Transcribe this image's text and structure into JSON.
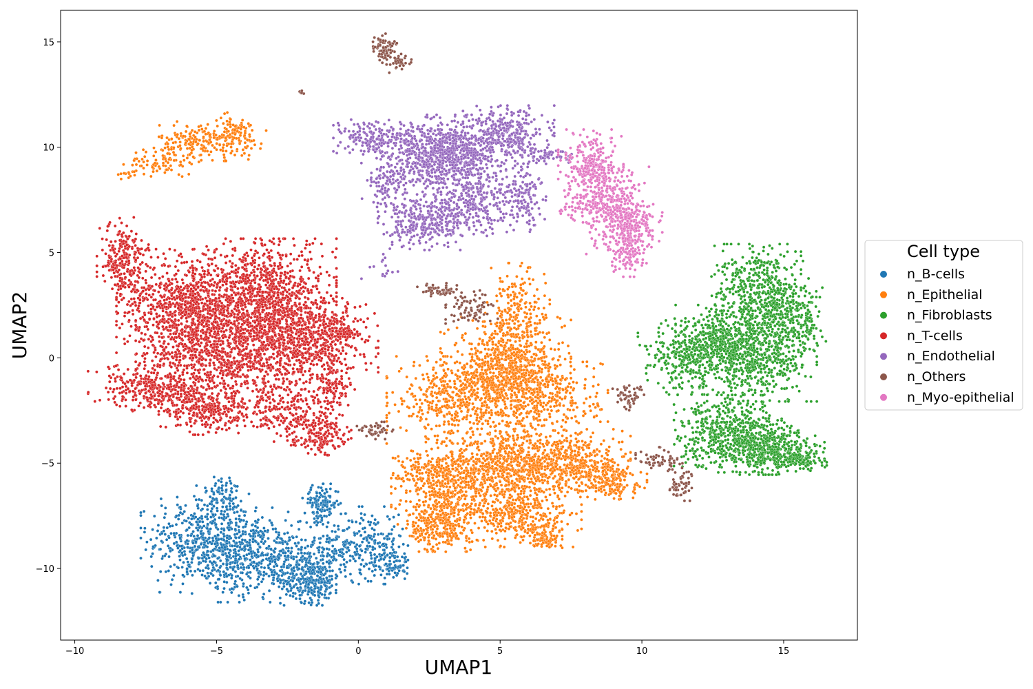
{
  "chart_data": {
    "type": "scatter",
    "title": "",
    "xlabel": "UMAP1",
    "ylabel": "UMAP2",
    "xlim": [
      -10.5,
      17.6
    ],
    "ylim": [
      -13.4,
      16.5
    ],
    "xticks": [
      -10,
      -5,
      0,
      5,
      10,
      15
    ],
    "yticks": [
      -10,
      -5,
      0,
      5,
      10,
      15
    ],
    "xtick_labels": [
      "−10",
      "−5",
      "0",
      "5",
      "10",
      "15"
    ],
    "ytick_labels": [
      "−10",
      "−5",
      "0",
      "5",
      "10",
      "15"
    ],
    "grid": false,
    "legend": {
      "title": "Cell type",
      "placement": "center-right-outside"
    },
    "series": [
      {
        "name": "n_B-cells",
        "color": "#1f77b4",
        "clusters": [
          {
            "cx": -5.6,
            "cy": -8.6,
            "sx": 0.9,
            "sy": 1.1,
            "n": 420
          },
          {
            "cx": -4.2,
            "cy": -9.3,
            "sx": 0.8,
            "sy": 1.0,
            "n": 320
          },
          {
            "cx": -2.8,
            "cy": -9.6,
            "sx": 0.8,
            "sy": 0.8,
            "n": 280
          },
          {
            "cx": -1.6,
            "cy": -10.6,
            "sx": 0.5,
            "sy": 0.5,
            "n": 260
          },
          {
            "cx": -1.3,
            "cy": -6.9,
            "sx": 0.3,
            "sy": 0.4,
            "n": 130
          },
          {
            "cx": -0.8,
            "cy": -9.0,
            "sx": 0.6,
            "sy": 0.7,
            "n": 160
          },
          {
            "cx": 0.6,
            "cy": -8.9,
            "sx": 0.5,
            "sy": 0.8,
            "n": 160
          },
          {
            "cx": 1.2,
            "cy": -9.8,
            "sx": 0.3,
            "sy": 0.3,
            "n": 70
          },
          {
            "cx": -4.8,
            "cy": -6.5,
            "sx": 0.3,
            "sy": 0.5,
            "n": 70
          }
        ]
      },
      {
        "name": "n_Epithelial",
        "color": "#ff7f0e",
        "clusters": [
          {
            "cx": -5.6,
            "cy": 10.3,
            "sx": 0.7,
            "sy": 0.4,
            "n": 180
          },
          {
            "cx": -4.4,
            "cy": 10.5,
            "sx": 0.5,
            "sy": 0.5,
            "n": 110
          },
          {
            "cx": -6.9,
            "cy": 9.3,
            "sx": 0.6,
            "sy": 0.3,
            "n": 70
          },
          {
            "cx": -8.0,
            "cy": 8.7,
            "sx": 0.3,
            "sy": 0.1,
            "n": 15
          },
          {
            "cx": 5.2,
            "cy": -0.6,
            "sx": 1.0,
            "sy": 1.1,
            "n": 800
          },
          {
            "cx": 3.3,
            "cy": -2.0,
            "sx": 1.0,
            "sy": 0.9,
            "n": 420
          },
          {
            "cx": 6.5,
            "cy": -1.9,
            "sx": 1.0,
            "sy": 1.0,
            "n": 360
          },
          {
            "cx": 5.6,
            "cy": 2.2,
            "sx": 0.5,
            "sy": 1.0,
            "n": 180
          },
          {
            "cx": 5.0,
            "cy": -5.3,
            "sx": 1.1,
            "sy": 0.9,
            "n": 700
          },
          {
            "cx": 7.3,
            "cy": -5.0,
            "sx": 1.0,
            "sy": 0.7,
            "n": 500
          },
          {
            "cx": 8.8,
            "cy": -5.8,
            "sx": 0.6,
            "sy": 0.4,
            "n": 170
          },
          {
            "cx": 3.0,
            "cy": -6.9,
            "sx": 0.8,
            "sy": 1.0,
            "n": 420
          },
          {
            "cx": 2.8,
            "cy": -8.1,
            "sx": 0.5,
            "sy": 0.5,
            "n": 160
          },
          {
            "cx": 5.8,
            "cy": -7.6,
            "sx": 0.9,
            "sy": 0.6,
            "n": 320
          },
          {
            "cx": 6.5,
            "cy": -8.6,
            "sx": 0.3,
            "sy": 0.2,
            "n": 70
          },
          {
            "cx": 2.6,
            "cy": -5.2,
            "sx": 0.6,
            "sy": 0.4,
            "n": 150
          }
        ]
      },
      {
        "name": "n_Fibroblasts",
        "color": "#2ca02c",
        "clusters": [
          {
            "cx": 14.0,
            "cy": 3.1,
            "sx": 0.7,
            "sy": 1.0,
            "n": 420
          },
          {
            "cx": 15.0,
            "cy": 2.3,
            "sx": 0.5,
            "sy": 1.0,
            "n": 240
          },
          {
            "cx": 14.1,
            "cy": 0.0,
            "sx": 0.9,
            "sy": 0.9,
            "n": 560
          },
          {
            "cx": 11.7,
            "cy": 0.1,
            "sx": 0.8,
            "sy": 0.8,
            "n": 360
          },
          {
            "cx": 12.8,
            "cy": 0.9,
            "sx": 0.7,
            "sy": 0.7,
            "n": 260
          },
          {
            "cx": 13.2,
            "cy": -3.6,
            "sx": 0.9,
            "sy": 0.8,
            "n": 600
          },
          {
            "cx": 14.6,
            "cy": -4.4,
            "sx": 0.8,
            "sy": 0.5,
            "n": 380
          },
          {
            "cx": 15.6,
            "cy": -4.9,
            "sx": 0.4,
            "sy": 0.2,
            "n": 100
          },
          {
            "cx": 15.8,
            "cy": 1.8,
            "sx": 0.3,
            "sy": 0.7,
            "n": 80
          }
        ]
      },
      {
        "name": "n_T-cells",
        "color": "#d62728",
        "clusters": [
          {
            "cx": -6.0,
            "cy": 2.4,
            "sx": 1.1,
            "sy": 1.2,
            "n": 900
          },
          {
            "cx": -3.3,
            "cy": 2.9,
            "sx": 1.1,
            "sy": 1.2,
            "n": 950
          },
          {
            "cx": -4.4,
            "cy": 0.2,
            "sx": 1.5,
            "sy": 1.1,
            "n": 1000
          },
          {
            "cx": -1.6,
            "cy": 0.8,
            "sx": 1.0,
            "sy": 1.0,
            "n": 550
          },
          {
            "cx": -8.3,
            "cy": 4.6,
            "sx": 0.4,
            "sy": 0.9,
            "n": 240
          },
          {
            "cx": -7.0,
            "cy": -1.5,
            "sx": 1.1,
            "sy": 0.5,
            "n": 360
          },
          {
            "cx": -5.2,
            "cy": -2.5,
            "sx": 0.8,
            "sy": 0.5,
            "n": 260
          },
          {
            "cx": -2.4,
            "cy": -2.6,
            "sx": 0.8,
            "sy": 0.6,
            "n": 220
          },
          {
            "cx": -1.4,
            "cy": -3.7,
            "sx": 0.5,
            "sy": 0.4,
            "n": 150
          },
          {
            "cx": -0.9,
            "cy": -1.4,
            "sx": 0.3,
            "sy": 0.6,
            "n": 100
          },
          {
            "cx": -0.5,
            "cy": 1.2,
            "sx": 0.3,
            "sy": 0.3,
            "n": 70
          }
        ]
      },
      {
        "name": "n_Endothelial",
        "color": "#9467bd",
        "clusters": [
          {
            "cx": 0.5,
            "cy": 10.4,
            "sx": 0.6,
            "sy": 0.4,
            "n": 180
          },
          {
            "cx": 2.3,
            "cy": 9.6,
            "sx": 0.8,
            "sy": 0.8,
            "n": 400
          },
          {
            "cx": 3.6,
            "cy": 9.7,
            "sx": 0.7,
            "sy": 0.8,
            "n": 500
          },
          {
            "cx": 5.3,
            "cy": 10.6,
            "sx": 0.7,
            "sy": 0.6,
            "n": 320
          },
          {
            "cx": 2.3,
            "cy": 6.5,
            "sx": 0.7,
            "sy": 0.6,
            "n": 340
          },
          {
            "cx": 4.1,
            "cy": 7.4,
            "sx": 0.6,
            "sy": 0.7,
            "n": 240
          },
          {
            "cx": 5.7,
            "cy": 7.6,
            "sx": 0.4,
            "sy": 0.7,
            "n": 160
          },
          {
            "cx": 6.6,
            "cy": 9.6,
            "sx": 0.4,
            "sy": 0.2,
            "n": 60
          },
          {
            "cx": 1.0,
            "cy": 8.2,
            "sx": 0.4,
            "sy": 0.6,
            "n": 90
          },
          {
            "cx": 0.8,
            "cy": 4.3,
            "sx": 0.3,
            "sy": 0.3,
            "n": 15
          }
        ]
      },
      {
        "name": "n_Others",
        "color": "#8c564b",
        "clusters": [
          {
            "cx": 0.9,
            "cy": 14.7,
            "sx": 0.2,
            "sy": 0.3,
            "n": 80
          },
          {
            "cx": 1.4,
            "cy": 14.0,
            "sx": 0.25,
            "sy": 0.2,
            "n": 40
          },
          {
            "cx": -2.0,
            "cy": 12.6,
            "sx": 0.05,
            "sy": 0.05,
            "n": 6
          },
          {
            "cx": 3.0,
            "cy": 3.2,
            "sx": 0.4,
            "sy": 0.15,
            "n": 60
          },
          {
            "cx": 4.0,
            "cy": 2.4,
            "sx": 0.4,
            "sy": 0.35,
            "n": 80
          },
          {
            "cx": 0.5,
            "cy": -3.4,
            "sx": 0.35,
            "sy": 0.2,
            "n": 45
          },
          {
            "cx": 9.5,
            "cy": -1.8,
            "sx": 0.25,
            "sy": 0.3,
            "n": 50
          },
          {
            "cx": 10.7,
            "cy": -4.9,
            "sx": 0.4,
            "sy": 0.3,
            "n": 60
          },
          {
            "cx": 11.3,
            "cy": -6.1,
            "sx": 0.2,
            "sy": 0.3,
            "n": 50
          }
        ]
      },
      {
        "name": "n_Myo-epithelial",
        "color": "#e377c2",
        "clusters": [
          {
            "cx": 8.2,
            "cy": 9.0,
            "sx": 0.5,
            "sy": 0.8,
            "n": 300
          },
          {
            "cx": 9.1,
            "cy": 7.0,
            "sx": 0.5,
            "sy": 0.9,
            "n": 320
          },
          {
            "cx": 9.8,
            "cy": 6.3,
            "sx": 0.4,
            "sy": 0.5,
            "n": 140
          },
          {
            "cx": 9.5,
            "cy": 5.0,
            "sx": 0.3,
            "sy": 0.5,
            "n": 120
          },
          {
            "cx": 7.8,
            "cy": 7.1,
            "sx": 0.3,
            "sy": 0.4,
            "n": 70
          }
        ]
      }
    ]
  }
}
